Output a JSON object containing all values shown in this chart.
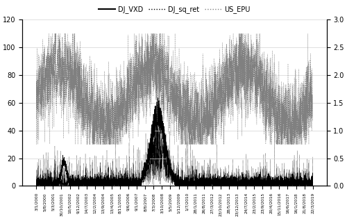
{
  "title": "",
  "legend_labels": [
    "DJ_VXD",
    "DJ_sq_ret",
    "US_EPU"
  ],
  "legend_styles": [
    "solid",
    "dotted",
    "dotted"
  ],
  "legend_colors": [
    "black",
    "black",
    "gray"
  ],
  "left_yticks": [
    0,
    20,
    40,
    60,
    80,
    100,
    120
  ],
  "right_yticks": [
    0,
    0.5,
    1.0,
    1.5,
    2.0,
    2.5,
    3.0
  ],
  "left_ylim": [
    0,
    120
  ],
  "right_ylim": [
    0,
    3.0
  ],
  "n_points": 5000,
  "seed": 42,
  "background_color": "#ffffff",
  "x_label_dates": [
    "3/1/2000",
    "5/8/2000",
    "5/3/2001",
    "30/10/2001",
    "10/5/2002",
    "9/12/2002",
    "14/7/2003",
    "12/2/2004",
    "13/9/2004",
    "13/4/2005",
    "8/11/2005",
    "9/6/2006",
    "9/1/2007",
    "8/8/2007",
    "7/3/2008",
    "3/10/2008",
    "5/5/2009",
    "1/12/2009",
    "1/7/2010",
    "28/1/2011",
    "26/8/2011",
    "27/3/2012",
    "23/10/2012",
    "28/5/2013",
    "23/12/2013",
    "24/7/2014",
    "23/2/2015",
    "23/9/2015",
    "20/4/2016",
    "15/11/2016",
    "16/6/2017",
    "16/1/2018",
    "21/8/2018",
    "22/3/2019"
  ]
}
